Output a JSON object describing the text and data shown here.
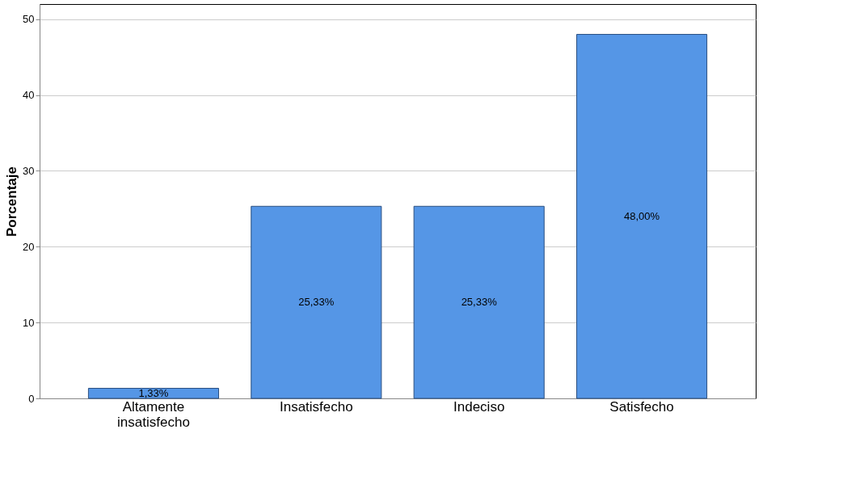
{
  "chart_data": {
    "type": "bar",
    "ylabel": "Porcentaje",
    "categories": [
      "Altamente insatisfecho",
      "Insatisfecho",
      "Indeciso",
      "Satisfecho"
    ],
    "values": [
      1.33,
      25.33,
      25.33,
      48.0
    ],
    "value_labels": [
      "1,33%",
      "25,33%",
      "25,33%",
      "48,00%"
    ],
    "color": "#5596e6",
    "ylim": [
      0,
      52
    ],
    "yticks": [
      0,
      10,
      20,
      30,
      40,
      50
    ],
    "grid": "y"
  }
}
